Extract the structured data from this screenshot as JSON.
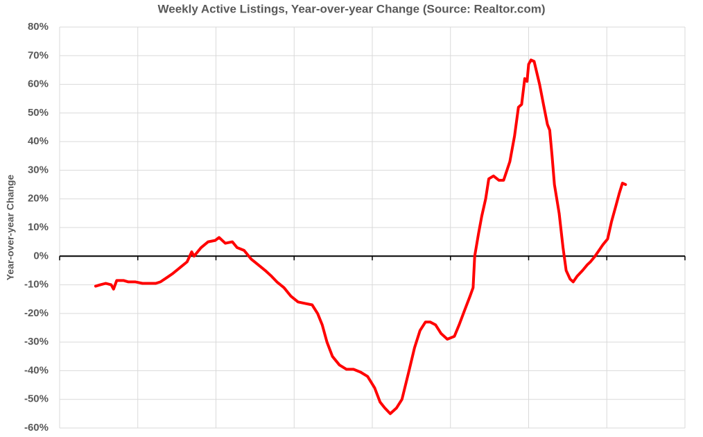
{
  "chart_data": {
    "type": "line",
    "title": "Weekly Active Listings, Year-over-year Change (Source: Realtor.com)",
    "y_label": "Year-over-year Change",
    "ylim": [
      -60,
      80
    ],
    "yticks": [
      {
        "value": -60,
        "label": "-60%"
      },
      {
        "value": -50,
        "label": "-50%"
      },
      {
        "value": -40,
        "label": "-40%"
      },
      {
        "value": -30,
        "label": "-30%"
      },
      {
        "value": -20,
        "label": "-20%"
      },
      {
        "value": -10,
        "label": "-10%"
      },
      {
        "value": 0,
        "label": "0%"
      },
      {
        "value": 10,
        "label": "10%"
      },
      {
        "value": 20,
        "label": "20%"
      },
      {
        "value": 30,
        "label": "30%"
      },
      {
        "value": 40,
        "label": "40%"
      },
      {
        "value": 50,
        "label": "50%"
      },
      {
        "value": 60,
        "label": "60%"
      },
      {
        "value": 70,
        "label": "70%"
      },
      {
        "value": 80,
        "label": "80%"
      }
    ],
    "xlim": [
      0,
      8
    ],
    "grid": true,
    "x": [
      0.46,
      0.52,
      0.59,
      0.66,
      0.69,
      0.73,
      0.82,
      0.88,
      0.97,
      1.06,
      1.14,
      1.23,
      1.29,
      1.37,
      1.45,
      1.54,
      1.63,
      1.69,
      1.72,
      1.81,
      1.9,
      1.99,
      2.04,
      2.12,
      2.21,
      2.27,
      2.36,
      2.45,
      2.54,
      2.63,
      2.71,
      2.78,
      2.87,
      2.96,
      3.05,
      3.14,
      3.23,
      3.3,
      3.36,
      3.42,
      3.49,
      3.58,
      3.67,
      3.76,
      3.85,
      3.94,
      4.03,
      4.1,
      4.16,
      4.23,
      4.31,
      4.38,
      4.47,
      4.54,
      4.61,
      4.68,
      4.74,
      4.81,
      4.88,
      4.96,
      5.05,
      5.11,
      5.18,
      5.25,
      5.29,
      5.31,
      5.36,
      5.4,
      5.45,
      5.49,
      5.55,
      5.62,
      5.68,
      5.76,
      5.82,
      5.87,
      5.91,
      5.95,
      5.98,
      6.0,
      6.03,
      6.07,
      6.14,
      6.19,
      6.24,
      6.27,
      6.3,
      6.33,
      6.39,
      6.44,
      6.48,
      6.53,
      6.57,
      6.62,
      6.69,
      6.75,
      6.79,
      6.85,
      6.9,
      6.95,
      7.01,
      7.06,
      7.11,
      7.16,
      7.2,
      7.24
    ],
    "series": [
      {
        "color": "#ff0000",
        "values": [
          -10.5,
          -10,
          -9.5,
          -10,
          -11.5,
          -8.5,
          -8.5,
          -9,
          -9,
          -9.5,
          -9.5,
          -9.5,
          -9,
          -7.5,
          -6,
          -4,
          -2,
          1.5,
          0,
          3,
          5,
          5.5,
          6.5,
          4.5,
          5,
          3,
          2,
          -1,
          -3,
          -5,
          -7,
          -9,
          -11,
          -14,
          -16,
          -16.5,
          -17,
          -20,
          -24,
          -30,
          -35,
          -38,
          -39.5,
          -39.5,
          -40.5,
          -42,
          -46,
          -51,
          -53,
          -55,
          -53,
          -50,
          -40,
          -32,
          -26,
          -23,
          -23,
          -24,
          -27,
          -29,
          -28,
          -24,
          -19,
          -14,
          -11,
          0,
          8,
          14,
          20,
          27,
          28,
          26.5,
          26.5,
          33,
          42,
          52,
          53,
          62,
          61,
          67,
          68.5,
          68,
          60,
          53,
          46,
          44,
          35,
          25,
          15,
          3,
          -5,
          -8,
          -9,
          -7,
          -5,
          -3,
          -2,
          0,
          2,
          4,
          6,
          12,
          17,
          22,
          25.5,
          25
        ]
      }
    ]
  }
}
